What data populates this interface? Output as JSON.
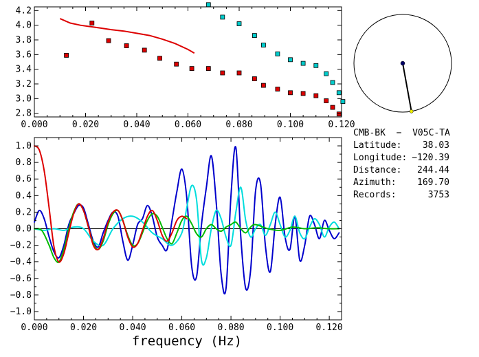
{
  "chart_data": [
    {
      "type": "scatter",
      "xlabel": "",
      "ylabel": "",
      "xlim": [
        0,
        0.12
      ],
      "ylim": [
        2.75,
        4.25
      ],
      "x_ticks": [
        "0.000",
        "0.020",
        "0.040",
        "0.060",
        "0.080",
        "0.100",
        "0.120"
      ],
      "y_ticks": [
        "2.8",
        "3.0",
        "3.2",
        "3.4",
        "3.6",
        "3.8",
        "4.0",
        "4.2"
      ],
      "grid": false,
      "series": [
        {
          "color": "#dd0000",
          "marker": "square",
          "x": [
            0.0125,
            0.0225,
            0.029,
            0.036,
            0.043,
            0.049,
            0.0555,
            0.0615,
            0.068,
            0.0735,
            0.08,
            0.086,
            0.0895,
            0.095,
            0.1,
            0.105,
            0.11,
            0.114,
            0.1165,
            0.119
          ],
          "y": [
            3.59,
            4.03,
            3.79,
            3.72,
            3.66,
            3.55,
            3.47,
            3.41,
            3.41,
            3.35,
            3.35,
            3.27,
            3.18,
            3.13,
            3.08,
            3.07,
            3.04,
            2.97,
            2.88,
            2.79
          ]
        },
        {
          "color": "#00cccc",
          "marker": "square",
          "x": [
            0.068,
            0.0735,
            0.08,
            0.086,
            0.0895,
            0.095,
            0.1,
            0.105,
            0.11,
            0.114,
            0.1165,
            0.119,
            0.1205
          ],
          "y": [
            4.28,
            4.11,
            4.02,
            3.86,
            3.73,
            3.61,
            3.53,
            3.48,
            3.45,
            3.34,
            3.22,
            3.08,
            2.96
          ]
        },
        {
          "color": "#dd0000",
          "marker": "line",
          "x": [
            0.01,
            0.014,
            0.018,
            0.022,
            0.026,
            0.03,
            0.035,
            0.04,
            0.045,
            0.05,
            0.055,
            0.06,
            0.0625
          ],
          "y": [
            4.09,
            4.03,
            4.0,
            3.98,
            3.96,
            3.94,
            3.92,
            3.89,
            3.86,
            3.81,
            3.75,
            3.67,
            3.62
          ]
        }
      ]
    },
    {
      "type": "line",
      "xlabel": "frequency (Hz)",
      "ylabel": "",
      "xlim": [
        0,
        0.125
      ],
      "ylim": [
        -1.1,
        1.1
      ],
      "x_ticks": [
        "0.000",
        "0.020",
        "0.040",
        "0.060",
        "0.080",
        "0.100",
        "0.120"
      ],
      "y_ticks": [
        "1.0",
        "0.8",
        "0.6",
        "0.4",
        "0.2",
        "0.0",
        "−0.2",
        "−0.4",
        "−0.6",
        "−0.8",
        "−1.0"
      ],
      "grid": false,
      "series": [
        {
          "color": "#0000cc",
          "x": [
            0.0,
            0.002,
            0.004,
            0.006,
            0.008,
            0.01,
            0.012,
            0.014,
            0.016,
            0.018,
            0.02,
            0.022,
            0.024,
            0.026,
            0.028,
            0.03,
            0.032,
            0.034,
            0.036,
            0.038,
            0.04,
            0.042,
            0.044,
            0.046,
            0.048,
            0.05,
            0.052,
            0.054,
            0.056,
            0.058,
            0.06,
            0.062,
            0.064,
            0.066,
            0.068,
            0.07,
            0.072,
            0.074,
            0.076,
            0.078,
            0.08,
            0.082,
            0.084,
            0.086,
            0.088,
            0.09,
            0.092,
            0.094,
            0.096,
            0.098,
            0.1,
            0.102,
            0.104,
            0.106,
            0.108,
            0.11,
            0.112,
            0.114,
            0.116,
            0.118,
            0.12,
            0.122,
            0.124
          ],
          "y": [
            0.08,
            0.22,
            0.12,
            -0.1,
            -0.28,
            -0.35,
            -0.2,
            0.05,
            0.18,
            0.28,
            0.25,
            0.05,
            -0.15,
            -0.22,
            -0.05,
            0.1,
            0.2,
            0.15,
            -0.15,
            -0.38,
            -0.2,
            0.05,
            0.12,
            0.28,
            0.15,
            -0.1,
            -0.2,
            -0.25,
            0.1,
            0.45,
            0.72,
            0.38,
            -0.45,
            -0.58,
            0.05,
            0.5,
            0.88,
            0.32,
            -0.55,
            -0.72,
            0.4,
            0.98,
            -0.1,
            -0.72,
            -0.5,
            0.45,
            0.55,
            -0.2,
            -0.52,
            0.05,
            0.38,
            -0.1,
            -0.25,
            0.15,
            -0.38,
            -0.2,
            0.15,
            0.05,
            -0.12,
            0.1,
            -0.02,
            -0.12,
            -0.05
          ]
        },
        {
          "color": "#00dddd",
          "x": [
            0.0,
            0.004,
            0.008,
            0.012,
            0.016,
            0.02,
            0.024,
            0.028,
            0.032,
            0.036,
            0.04,
            0.044,
            0.048,
            0.052,
            0.056,
            0.06,
            0.062,
            0.064,
            0.066,
            0.068,
            0.07,
            0.072,
            0.074,
            0.076,
            0.078,
            0.08,
            0.082,
            0.084,
            0.086,
            0.088,
            0.09,
            0.092,
            0.094,
            0.096,
            0.098,
            0.1,
            0.102,
            0.104,
            0.106,
            0.108,
            0.11,
            0.112,
            0.114,
            0.116,
            0.118,
            0.12,
            0.122,
            0.124
          ],
          "y": [
            0.0,
            -0.02,
            0.0,
            -0.02,
            0.02,
            0.0,
            -0.15,
            -0.2,
            0.0,
            0.12,
            0.15,
            0.08,
            -0.05,
            -0.12,
            -0.2,
            -0.05,
            0.25,
            0.52,
            0.35,
            -0.38,
            -0.35,
            0.0,
            0.22,
            0.12,
            -0.1,
            -0.2,
            0.2,
            0.5,
            0.1,
            -0.1,
            0.0,
            0.05,
            -0.08,
            0.05,
            0.2,
            0.05,
            -0.1,
            -0.02,
            0.15,
            -0.05,
            -0.12,
            0.02,
            0.12,
            0.05,
            -0.1,
            0.02,
            0.08,
            0.0
          ]
        },
        {
          "color": "#00bb00",
          "x": [
            0.0,
            0.003,
            0.006,
            0.008,
            0.01,
            0.012,
            0.014,
            0.016,
            0.018,
            0.02,
            0.022,
            0.024,
            0.026,
            0.028,
            0.03,
            0.032,
            0.034,
            0.036,
            0.038,
            0.04,
            0.042,
            0.044,
            0.046,
            0.048,
            0.05,
            0.052,
            0.054,
            0.056,
            0.058,
            0.06,
            0.062,
            0.064,
            0.066,
            0.068,
            0.07,
            0.072,
            0.074,
            0.076,
            0.078,
            0.08,
            0.082,
            0.084,
            0.086,
            0.088,
            0.09,
            0.095,
            0.1,
            0.105,
            0.11,
            0.115,
            0.12,
            0.124
          ],
          "y": [
            0.0,
            -0.02,
            -0.2,
            -0.35,
            -0.4,
            -0.25,
            0.0,
            0.2,
            0.3,
            0.22,
            0.02,
            -0.18,
            -0.25,
            -0.15,
            0.05,
            0.18,
            0.22,
            0.1,
            -0.08,
            -0.2,
            -0.18,
            -0.05,
            0.1,
            0.18,
            0.15,
            0.02,
            -0.12,
            -0.18,
            -0.05,
            0.1,
            0.15,
            0.06,
            -0.06,
            -0.1,
            0.0,
            0.05,
            0.0,
            -0.03,
            0.02,
            0.05,
            0.08,
            0.0,
            -0.05,
            0.02,
            0.05,
            0.0,
            -0.02,
            0.02,
            0.0,
            0.01,
            0.0,
            0.0
          ]
        },
        {
          "color": "#dd0000",
          "x": [
            0.0,
            0.002,
            0.004,
            0.006,
            0.008,
            0.01,
            0.012,
            0.014,
            0.016,
            0.018,
            0.02,
            0.022,
            0.024,
            0.026,
            0.028,
            0.03,
            0.032,
            0.034,
            0.036,
            0.038,
            0.04,
            0.042,
            0.044,
            0.046,
            0.048,
            0.05,
            0.052,
            0.054,
            0.056,
            0.058,
            0.06,
            0.062
          ],
          "y": [
            1.0,
            0.95,
            0.7,
            0.25,
            -0.22,
            -0.4,
            -0.3,
            -0.05,
            0.18,
            0.3,
            0.22,
            0.02,
            -0.2,
            -0.25,
            -0.12,
            0.08,
            0.2,
            0.22,
            0.1,
            -0.1,
            -0.22,
            -0.18,
            -0.02,
            0.15,
            0.22,
            0.1,
            -0.08,
            -0.15,
            -0.05,
            0.1,
            0.15,
            0.12
          ]
        }
      ]
    }
  ],
  "info": {
    "station_line": "CMB-BK  −  V05C-TA",
    "latitude_label": "Latitude:",
    "latitude_value": "38.03",
    "longitude_label": "Longitude:",
    "longitude_value": "−120.39",
    "distance_label": "Distance:",
    "distance_value": "244.44",
    "azimuth_label": "Azimuth:",
    "azimuth_value": "169.70",
    "records_label": "Records:",
    "records_value": "3753"
  },
  "azimuth_dial": {
    "azimuth_deg": 169.7,
    "center_color": "#000066",
    "end_color": "#eeee00"
  }
}
